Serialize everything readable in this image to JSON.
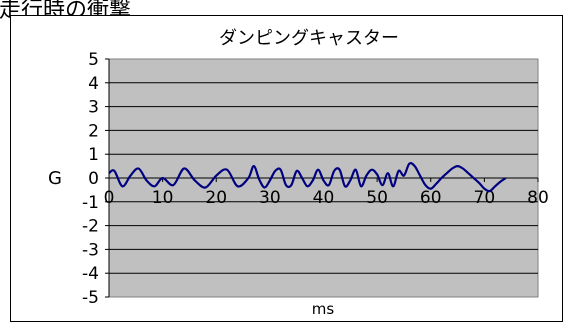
{
  "page": {
    "heading": "走行時の衝撃"
  },
  "chart_data": {
    "type": "line",
    "title": "ダンピングキャスター",
    "xlabel": "ms",
    "ylabel": "G",
    "xlim": [
      0,
      80
    ],
    "ylim": [
      -5,
      5
    ],
    "x_ticks": [
      0,
      10,
      20,
      30,
      40,
      50,
      60,
      70,
      80
    ],
    "y_ticks": [
      5,
      4,
      3,
      2,
      1,
      0,
      -1,
      -2,
      -3,
      -4,
      -5
    ],
    "x_tick_labels": [
      "0",
      "10",
      "20",
      "30",
      "40",
      "50",
      "60",
      "70",
      "80"
    ],
    "y_tick_labels": [
      "5",
      "4",
      "3",
      "2",
      "1",
      "0",
      "-1",
      "-2",
      "-3",
      "-4",
      "-5"
    ],
    "grid": true,
    "plot_background": "#c0c0c0",
    "series": [
      {
        "color": "#000080",
        "x": [
          0,
          1,
          2.5,
          4,
          5.5,
          7,
          8.5,
          10,
          12,
          14,
          16,
          18,
          20,
          22,
          24,
          26,
          27,
          28,
          29,
          30,
          31,
          32,
          33,
          34,
          35,
          36,
          37,
          38,
          39,
          40,
          41,
          42,
          43,
          44,
          45,
          46,
          47,
          48,
          49,
          50,
          51,
          52,
          53,
          54,
          55,
          56,
          57,
          58,
          59,
          60,
          61,
          62,
          63,
          64,
          65,
          66,
          67,
          68,
          69,
          70,
          71,
          72,
          73,
          74
        ],
        "y": [
          0.2,
          0.3,
          -0.35,
          0.1,
          0.4,
          -0.1,
          -0.35,
          0.0,
          -0.3,
          0.4,
          -0.1,
          -0.4,
          0.1,
          0.35,
          -0.35,
          0.0,
          0.5,
          -0.05,
          -0.4,
          -0.1,
          0.3,
          0.35,
          -0.3,
          -0.3,
          0.3,
          0.0,
          -0.35,
          -0.1,
          0.35,
          -0.1,
          -0.3,
          0.3,
          0.35,
          -0.35,
          -0.1,
          0.35,
          -0.35,
          0.1,
          0.35,
          0.15,
          -0.3,
          0.2,
          -0.35,
          0.3,
          0.1,
          0.6,
          0.5,
          0.1,
          -0.3,
          -0.45,
          -0.25,
          0.0,
          0.2,
          0.4,
          0.5,
          0.4,
          0.2,
          0.0,
          -0.2,
          -0.45,
          -0.55,
          -0.35,
          -0.15,
          0.0
        ]
      }
    ]
  }
}
